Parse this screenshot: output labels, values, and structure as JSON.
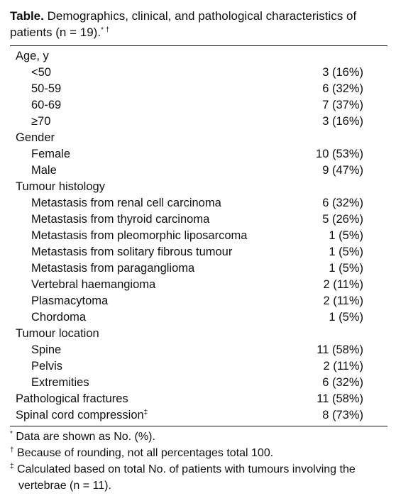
{
  "title": {
    "label": "Table.",
    "text": "Demographics, clinical, and pathological characteristics of patients (n = 19).",
    "marks": "* †"
  },
  "table": {
    "sections": [
      {
        "heading": "Age, y",
        "rows": [
          [
            "<50",
            "3 (16%)"
          ],
          [
            "50-59",
            "6 (32%)"
          ],
          [
            "60-69",
            "7 (37%)"
          ],
          [
            "≥70",
            "3 (16%)"
          ]
        ]
      },
      {
        "heading": "Gender",
        "rows": [
          [
            "Female",
            "10 (53%)"
          ],
          [
            "Male",
            "9 (47%)"
          ]
        ]
      },
      {
        "heading": "Tumour histology",
        "rows": [
          [
            "Metastasis from renal cell carcinoma",
            "6 (32%)"
          ],
          [
            "Metastasis from thyroid carcinoma",
            "5 (26%)"
          ],
          [
            "Metastasis from pleomorphic liposarcoma",
            "1 (5%)"
          ],
          [
            "Metastasis from solitary fibrous tumour",
            "1 (5%)"
          ],
          [
            "Metastasis from paraganglioma",
            "1 (5%)"
          ],
          [
            "Vertebral haemangioma",
            "2 (11%)"
          ],
          [
            "Plasmacytoma",
            "2 (11%)"
          ],
          [
            "Chordoma",
            "1 (5%)"
          ]
        ]
      },
      {
        "heading": "Tumour location",
        "rows": [
          [
            "Spine",
            "11 (58%)"
          ],
          [
            "Pelvis",
            "2 (11%)"
          ],
          [
            "Extremities",
            "6 (32%)"
          ]
        ]
      },
      {
        "heading": "Pathological fractures",
        "value": "11 (58%)"
      },
      {
        "heading": "Spinal cord compression",
        "mark": "‡",
        "value": "8 (73%)"
      }
    ]
  },
  "footnotes": [
    {
      "mark": "*",
      "text": "Data are shown as No. (%)."
    },
    {
      "mark": "†",
      "text": "Because of rounding, not all percentages total 100."
    },
    {
      "mark": "‡",
      "text": "Calculated based on total No. of patients with tumours involving the vertebrae (n = 11)."
    }
  ]
}
